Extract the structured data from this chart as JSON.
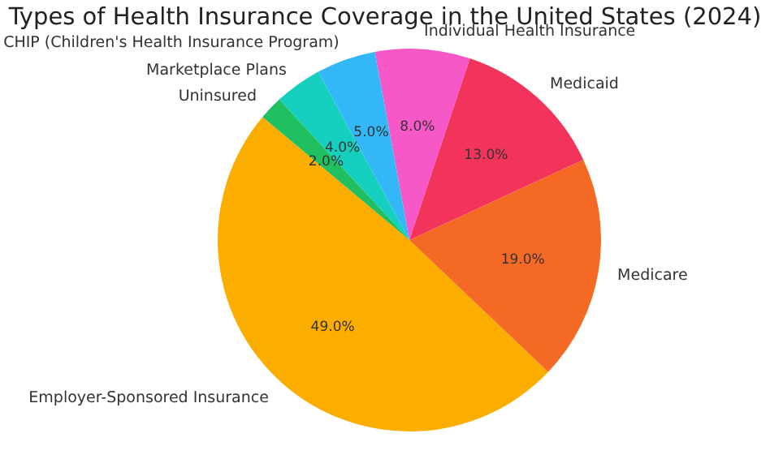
{
  "chart_data": {
    "type": "pie",
    "title": "Types of Health Insurance Coverage in the United States (2024)",
    "categories": [
      "Employer-Sponsored Insurance",
      "Medicare",
      "Medicaid",
      "Individual Health Insurance",
      "CHIP (Children's Health Insurance Program)",
      "Marketplace Plans",
      "Uninsured"
    ],
    "values": [
      49,
      19,
      13,
      8,
      5,
      4,
      2
    ],
    "colors": [
      "#fbad00",
      "#f46a24",
      "#f2335a",
      "#f758c8",
      "#34b7f6",
      "#15cfbf",
      "#20c060"
    ],
    "value_labels": [
      "49.0%",
      "19.0%",
      "13.0%",
      "8.0%",
      "5.0%",
      "4.0%",
      "2.0%"
    ],
    "legend": false
  }
}
